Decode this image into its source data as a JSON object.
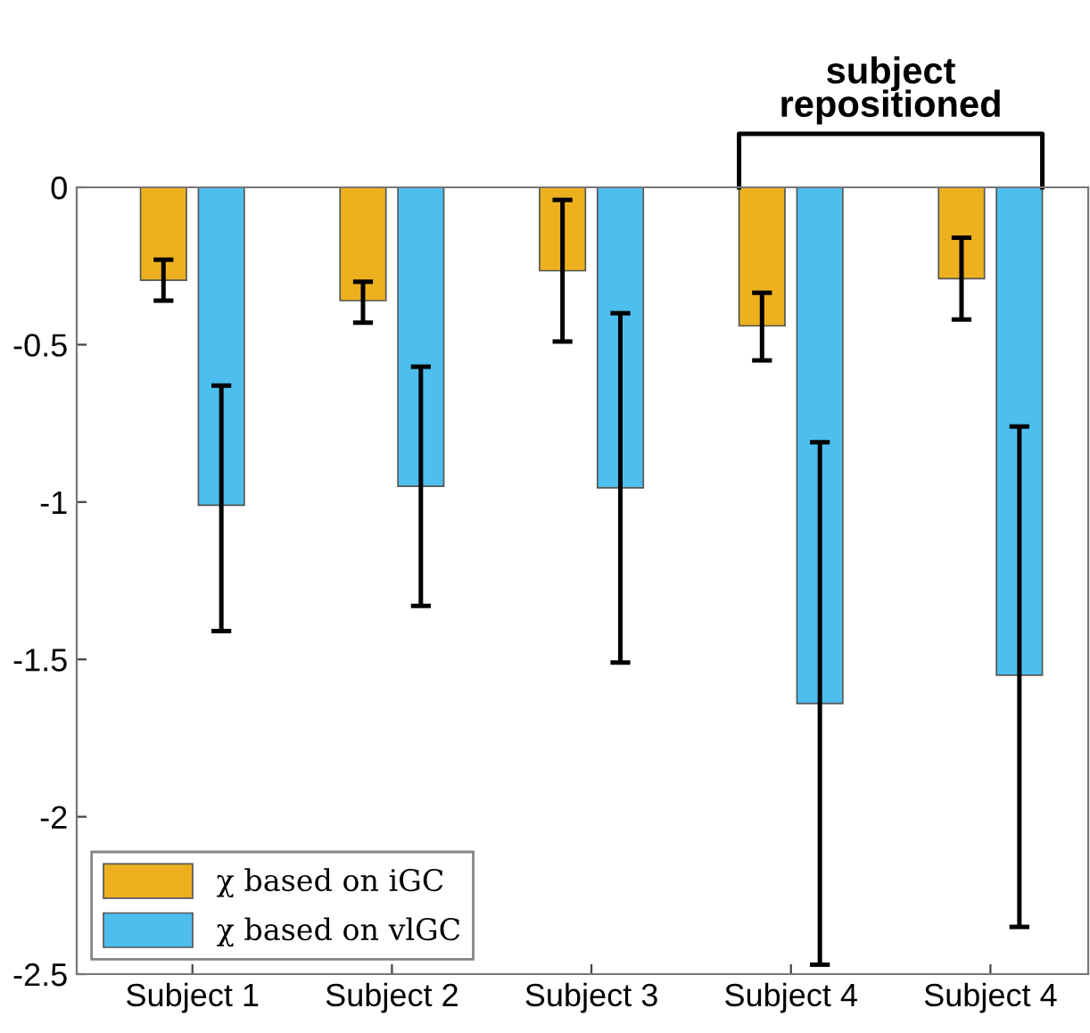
{
  "chart_data": {
    "type": "bar",
    "categories": [
      "Subject 1",
      "Subject 2",
      "Subject 3",
      "Subject 4",
      "Subject 4"
    ],
    "series": [
      {
        "name": "χ based on iGC",
        "color": "#edb120",
        "values": [
          -0.295,
          -0.36,
          -0.265,
          -0.44,
          -0.29
        ],
        "errors": [
          [
            -0.36,
            -0.23
          ],
          [
            -0.43,
            -0.3
          ],
          [
            -0.49,
            -0.04
          ],
          [
            -0.55,
            -0.335
          ],
          [
            -0.42,
            -0.16
          ]
        ]
      },
      {
        "name": "χ based on vlGC",
        "color": "#4dbeee",
        "values": [
          -1.01,
          -0.95,
          -0.955,
          -1.64,
          -1.55
        ],
        "errors": [
          [
            -1.41,
            -0.63
          ],
          [
            -1.33,
            -0.57
          ],
          [
            -1.51,
            -0.4
          ],
          [
            -2.47,
            -0.81
          ],
          [
            -2.35,
            -0.76
          ]
        ]
      }
    ],
    "ylim": [
      -2.5,
      0
    ],
    "yticks": [
      {
        "value": -2.5,
        "label": "-2.5"
      },
      {
        "value": -2,
        "label": "-2"
      },
      {
        "value": -1.5,
        "label": "-1.5"
      },
      {
        "value": -1,
        "label": "-1"
      },
      {
        "value": -0.5,
        "label": "-0.5"
      },
      0
    ],
    "annotations": [
      "subject\nrepositioned"
    ],
    "legend": "bottom left",
    "grid": false
  }
}
